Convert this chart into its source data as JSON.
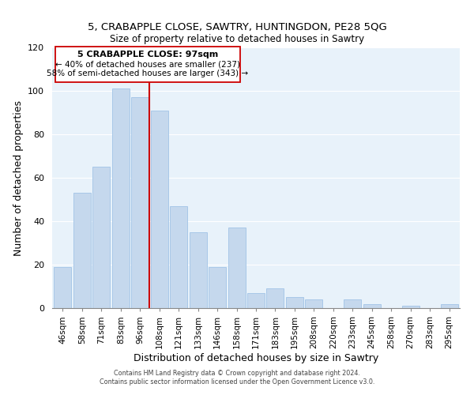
{
  "title": "5, CRABAPPLE CLOSE, SAWTRY, HUNTINGDON, PE28 5QG",
  "subtitle": "Size of property relative to detached houses in Sawtry",
  "xlabel": "Distribution of detached houses by size in Sawtry",
  "ylabel": "Number of detached properties",
  "bar_color": "#c5d8ed",
  "bar_edge_color": "#a8c8e8",
  "bg_color": "#e8f2fa",
  "grid_color": "#ffffff",
  "categories": [
    "46sqm",
    "58sqm",
    "71sqm",
    "83sqm",
    "96sqm",
    "108sqm",
    "121sqm",
    "133sqm",
    "146sqm",
    "158sqm",
    "171sqm",
    "183sqm",
    "195sqm",
    "208sqm",
    "220sqm",
    "233sqm",
    "245sqm",
    "258sqm",
    "270sqm",
    "283sqm",
    "295sqm"
  ],
  "values": [
    19,
    53,
    65,
    101,
    97,
    91,
    47,
    35,
    19,
    37,
    7,
    9,
    5,
    4,
    0,
    4,
    2,
    0,
    1,
    0,
    2
  ],
  "vline_x_index": 4.5,
  "vline_color": "#cc0000",
  "annotation_title": "5 CRABAPPLE CLOSE: 97sqm",
  "annotation_line1": "← 40% of detached houses are smaller (237)",
  "annotation_line2": "58% of semi-detached houses are larger (343) →",
  "ylim": [
    0,
    120
  ],
  "yticks": [
    0,
    20,
    40,
    60,
    80,
    100,
    120
  ],
  "footer1": "Contains HM Land Registry data © Crown copyright and database right 2024.",
  "footer2": "Contains public sector information licensed under the Open Government Licence v3.0."
}
